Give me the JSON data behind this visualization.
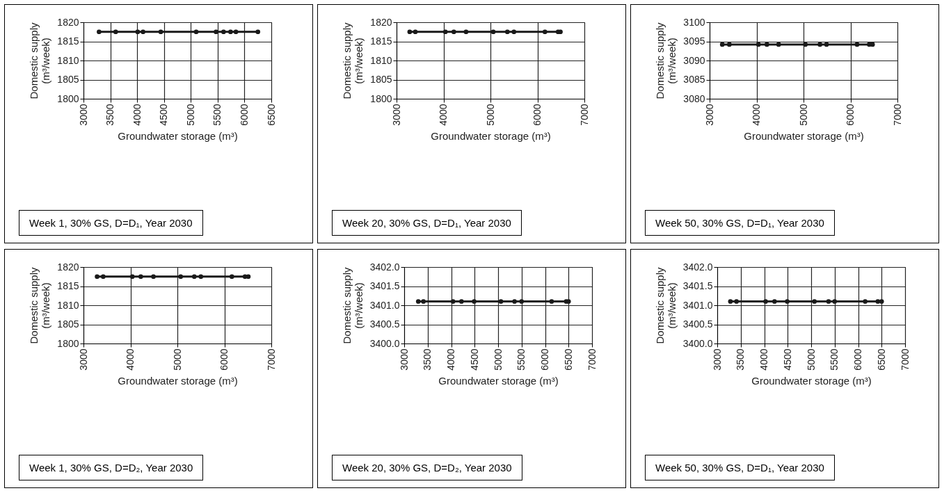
{
  "chart_data": [
    {
      "type": "line",
      "xlabel": "Groundwater storage (m³)",
      "ylabel": "Domestic supply (m³/week)",
      "annotations": [
        "Week 1, 30% GS, D=D₁, Year 2030"
      ],
      "grid": true,
      "marker": "circle",
      "line_style": "solid",
      "xlim": [
        3000,
        6500
      ],
      "xticks": [
        3000,
        3500,
        4000,
        4500,
        5000,
        5500,
        6000,
        6500
      ],
      "ylim": [
        1800,
        1820
      ],
      "yticks": [
        1800,
        1805,
        1810,
        1815,
        1820
      ],
      "series": [
        {
          "color": "#1a1a1a",
          "x": [
            3290,
            3600,
            4010,
            4110,
            4440,
            5100,
            5470,
            5610,
            5740,
            5840,
            6250
          ],
          "values": [
            1817.5,
            1817.5,
            1817.5,
            1817.5,
            1817.5,
            1817.5,
            1817.5,
            1817.5,
            1817.5,
            1817.5,
            1817.5
          ]
        }
      ]
    },
    {
      "type": "line",
      "xlabel": "Groundwater storage (m³)",
      "ylabel": "Domestic supply (m³/week)",
      "annotations": [
        "Week 20, 30% GS, D=D₁, Year 2030"
      ],
      "grid": true,
      "marker": "circle",
      "line_style": "solid",
      "xlim": [
        3000,
        7000
      ],
      "xticks": [
        3000,
        4000,
        5000,
        6000,
        7000
      ],
      "ylim": [
        1800,
        1820
      ],
      "yticks": [
        1800,
        1805,
        1810,
        1815,
        1820
      ],
      "series": [
        {
          "color": "#1a1a1a",
          "x": [
            3280,
            3400,
            4040,
            4220,
            4480,
            5060,
            5360,
            5500,
            6160,
            6440,
            6490
          ],
          "values": [
            1817.5,
            1817.5,
            1817.5,
            1817.5,
            1817.5,
            1817.5,
            1817.5,
            1817.5,
            1817.5,
            1817.5,
            1817.5
          ]
        }
      ]
    },
    {
      "type": "line",
      "xlabel": "Groundwater storage (m³)",
      "ylabel": "Domestic supply (m³/week)",
      "annotations": [
        "Week 50, 30% GS, D=D₁, Year 2030"
      ],
      "grid": true,
      "marker": "circle",
      "line_style": "solid",
      "xlim": [
        3000,
        7000
      ],
      "xticks": [
        3000,
        4000,
        5000,
        6000,
        7000
      ],
      "ylim": [
        3080,
        3100
      ],
      "yticks": [
        3080,
        3085,
        3090,
        3095,
        3100
      ],
      "series": [
        {
          "color": "#1a1a1a",
          "x": [
            3270,
            3420,
            4040,
            4220,
            4470,
            5040,
            5350,
            5490,
            6140,
            6400,
            6470
          ],
          "values": [
            3094.2,
            3094.2,
            3094.2,
            3094.2,
            3094.2,
            3094.2,
            3094.2,
            3094.2,
            3094.2,
            3094.2,
            3094.2
          ]
        }
      ]
    },
    {
      "type": "line",
      "xlabel": "Groundwater storage (m³)",
      "ylabel": "Domestic supply (m³/week)",
      "annotations": [
        "Week 1, 30% GS, D=D₂, Year 2030"
      ],
      "grid": true,
      "marker": "circle",
      "line_style": "solid",
      "xlim": [
        3000,
        7000
      ],
      "xticks": [
        3000,
        4000,
        5000,
        6000,
        7000
      ],
      "ylim": [
        1800,
        1820
      ],
      "yticks": [
        1800,
        1805,
        1810,
        1815,
        1820
      ],
      "series": [
        {
          "color": "#1a1a1a",
          "x": [
            3290,
            3420,
            4040,
            4220,
            4490,
            5070,
            5360,
            5500,
            6160,
            6440,
            6510
          ],
          "values": [
            1817.5,
            1817.5,
            1817.5,
            1817.5,
            1817.5,
            1817.5,
            1817.5,
            1817.5,
            1817.5,
            1817.5,
            1817.5
          ]
        }
      ]
    },
    {
      "type": "line",
      "xlabel": "Groundwater storage (m³)",
      "ylabel": "Domestic supply (m³/week)",
      "annotations": [
        "Week 20, 30% GS, D=D₂, Year 2030"
      ],
      "grid": true,
      "marker": "circle",
      "line_style": "solid",
      "xlim": [
        3000,
        7000
      ],
      "xticks": [
        3000,
        3500,
        4000,
        4500,
        5000,
        5500,
        6000,
        6500,
        7000
      ],
      "ylim": [
        3400,
        3402
      ],
      "yticks": [
        {
          "value": 3400,
          "label": "3400.0"
        },
        {
          "value": 3400.5,
          "label": "3400.5"
        },
        {
          "value": 3401,
          "label": "3401.0"
        },
        {
          "value": 3401.5,
          "label": "3401.5"
        },
        {
          "value": 3402,
          "label": "3402.0"
        }
      ],
      "series": [
        {
          "color": "#1a1a1a",
          "x": [
            3300,
            3410,
            4040,
            4220,
            4490,
            5060,
            5350,
            5500,
            6140,
            6450,
            6500
          ],
          "values": [
            3401.1,
            3401.1,
            3401.1,
            3401.1,
            3401.1,
            3401.1,
            3401.1,
            3401.1,
            3401.1,
            3401.1,
            3401.1
          ]
        }
      ]
    },
    {
      "type": "line",
      "xlabel": "Groundwater storage (m³)",
      "ylabel": "Domestic supply (m³/week)",
      "annotations": [
        "Week 50, 30% GS, D=D₁, Year 2030"
      ],
      "grid": true,
      "marker": "circle",
      "line_style": "solid",
      "xlim": [
        3000,
        7000
      ],
      "xticks": [
        3000,
        3500,
        4000,
        4500,
        5000,
        5500,
        6000,
        6500,
        7000
      ],
      "ylim": [
        3400,
        3402
      ],
      "yticks": [
        {
          "value": 3400,
          "label": "3400.0"
        },
        {
          "value": 3400.5,
          "label": "3400.5"
        },
        {
          "value": 3401,
          "label": "3401.0"
        },
        {
          "value": 3401.5,
          "label": "3401.5"
        },
        {
          "value": 3402,
          "label": "3402.0"
        }
      ],
      "series": [
        {
          "color": "#1a1a1a",
          "x": [
            3280,
            3410,
            4030,
            4220,
            4490,
            5070,
            5370,
            5500,
            6150,
            6420,
            6500
          ],
          "values": [
            3401.1,
            3401.1,
            3401.1,
            3401.1,
            3401.1,
            3401.1,
            3401.1,
            3401.1,
            3401.1,
            3401.1,
            3401.1
          ]
        }
      ]
    }
  ]
}
